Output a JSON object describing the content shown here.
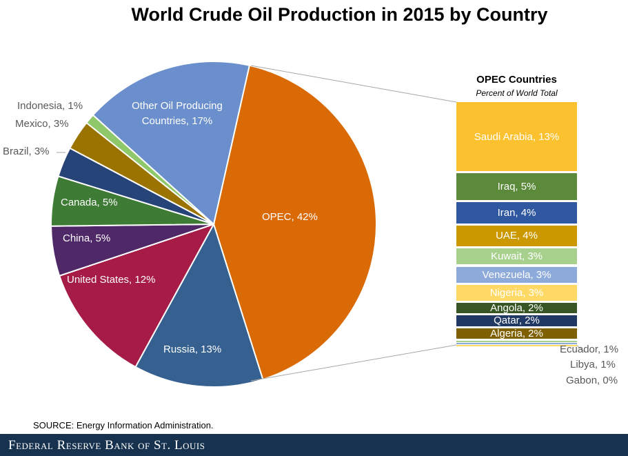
{
  "chart_data": {
    "type": "pie",
    "title": "World Crude Oil Production in 2015 by Country",
    "slices": [
      {
        "label": "OPEC, 42%",
        "name": "OPEC",
        "value": 42,
        "color": "#d96a05"
      },
      {
        "label": "Russia, 13%",
        "name": "Russia",
        "value": 13,
        "color": "#35608f"
      },
      {
        "label": "United States, 12%",
        "name": "United States",
        "value": 12,
        "color": "#a61c47"
      },
      {
        "label": "China, 5%",
        "name": "China",
        "value": 5,
        "color": "#4f2868"
      },
      {
        "label": "Canada, 5%",
        "name": "Canada",
        "value": 5,
        "color": "#3e7b35"
      },
      {
        "label": "Brazil, 3%",
        "name": "Brazil",
        "value": 3,
        "color": "#264478"
      },
      {
        "label": "Mexico, 3%",
        "name": "Mexico",
        "value": 3,
        "color": "#9a7300"
      },
      {
        "label": "Indonesia, 1%",
        "name": "Indonesia",
        "value": 1,
        "color": "#8ec86a"
      },
      {
        "label": "Other Oil Producing Countries, 17%",
        "name": "Other Oil Producing Countries",
        "value": 17,
        "color": "#6a8fcc"
      }
    ],
    "breakout": {
      "title": "OPEC Countries",
      "subtitle": "Percent of World Total",
      "type": "stacked-bar",
      "items": [
        {
          "label": "Saudi Arabia, 13%",
          "value": 13,
          "color": "#fcc12e"
        },
        {
          "label": "Iraq, 5%",
          "value": 5,
          "color": "#5a8a3a"
        },
        {
          "label": "Iran, 4%",
          "value": 4,
          "color": "#2f58a0"
        },
        {
          "label": "UAE, 4%",
          "value": 4,
          "color": "#cc9800"
        },
        {
          "label": "Kuwait, 3%",
          "value": 3,
          "color": "#a8d08d"
        },
        {
          "label": "Venezuela, 3%",
          "value": 3,
          "color": "#8eaadb"
        },
        {
          "label": "Nigeria, 3%",
          "value": 3,
          "color": "#ffd966"
        },
        {
          "label": "Angola, 2%",
          "value": 2,
          "color": "#375623"
        },
        {
          "label": "Qatar, 2%",
          "value": 2,
          "color": "#203864"
        },
        {
          "label": "Algeria, 2%",
          "value": 2,
          "color": "#7f6000"
        },
        {
          "label": "Ecuador, 1%",
          "value": 1,
          "color": "#a8d08d"
        },
        {
          "label": "Libya, 1%",
          "value": 1,
          "color": "#8eaadb"
        },
        {
          "label": "Gabon, 0%",
          "value": 0,
          "color": "#ffd966"
        }
      ]
    }
  },
  "source": "SOURCE: Energy Information  Administration.",
  "footer": "Federal Reserve Bank of St. Louis"
}
